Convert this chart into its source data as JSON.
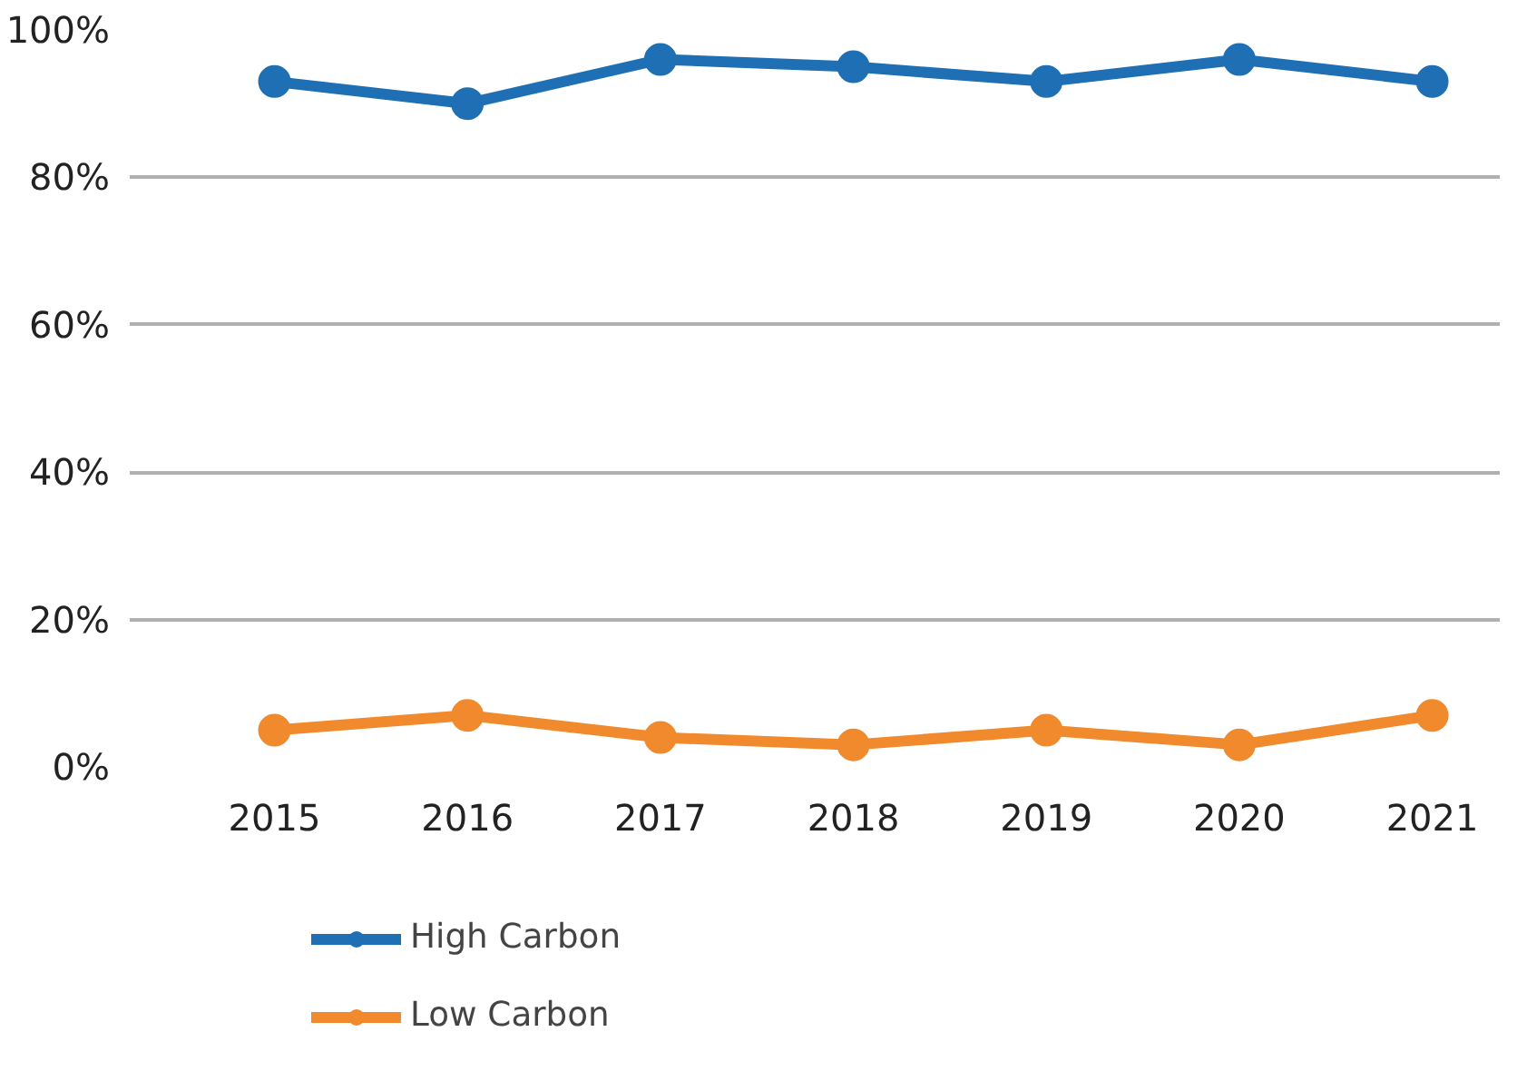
{
  "chart_data": {
    "type": "line",
    "categories": [
      "2015",
      "2016",
      "2017",
      "2018",
      "2019",
      "2020",
      "2021"
    ],
    "series": [
      {
        "name": "High Carbon",
        "color": "#1f6fb5",
        "values": [
          93,
          90,
          96,
          95,
          93,
          96,
          93
        ]
      },
      {
        "name": "Low Carbon",
        "color": "#f08a2c",
        "values": [
          5,
          7,
          4,
          3,
          5,
          3,
          7
        ]
      }
    ],
    "ylim": [
      0,
      100
    ],
    "yticks": [
      {
        "value": 0,
        "label": "0%"
      },
      {
        "value": 20,
        "label": "20%"
      },
      {
        "value": 40,
        "label": "40%"
      },
      {
        "value": 60,
        "label": "60%"
      },
      {
        "value": 80,
        "label": "80%"
      },
      {
        "value": 100,
        "label": "100%"
      }
    ],
    "grid": "y",
    "legend": "bottom left",
    "marker": "circle",
    "line_style": "solid"
  }
}
